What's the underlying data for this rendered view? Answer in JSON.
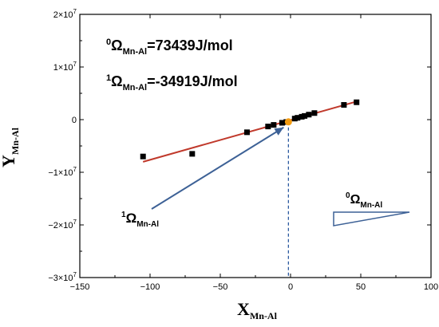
{
  "chart_data": {
    "type": "scatter",
    "x_axis": {
      "label_main": "X",
      "label_sub": "Mn-Al",
      "range": [
        -150,
        100
      ],
      "ticks": [
        -150,
        -100,
        -50,
        0,
        50,
        100
      ],
      "tick_labels": [
        "−150",
        "−100",
        "−50",
        "0",
        "50",
        "100"
      ]
    },
    "y_axis": {
      "label_main": "Y",
      "label_sub": "Mn-Al",
      "range": [
        -30000000,
        20000000
      ],
      "ticks": [
        -30000000,
        -20000000,
        -10000000,
        0,
        10000000,
        20000000
      ],
      "tick_labels": [
        {
          "mant": "−3×10",
          "exp": "7"
        },
        {
          "mant": "−2×10",
          "exp": "7"
        },
        {
          "mant": "−1×10",
          "exp": "7"
        },
        {
          "mant": "0",
          "exp": ""
        },
        {
          "mant": "1×10",
          "exp": "7"
        },
        {
          "mant": "2×10",
          "exp": "7"
        }
      ]
    },
    "points": [
      {
        "x": -105,
        "y": -7000000
      },
      {
        "x": -70,
        "y": -6500000
      },
      {
        "x": -31,
        "y": -2400000
      },
      {
        "x": -16,
        "y": -1300000
      },
      {
        "x": -12,
        "y": -1000000
      },
      {
        "x": -6,
        "y": -600000
      },
      {
        "x": -3,
        "y": -450000
      },
      {
        "x": 3,
        "y": 200000
      },
      {
        "x": 5,
        "y": 350000
      },
      {
        "x": 8,
        "y": 550000
      },
      {
        "x": 10,
        "y": 700000
      },
      {
        "x": 13,
        "y": 950000
      },
      {
        "x": 17,
        "y": 1250000
      },
      {
        "x": 38,
        "y": 2800000
      },
      {
        "x": 47,
        "y": 3300000
      }
    ],
    "fit_line": {
      "x": [
        -105,
        47
      ],
      "y": [
        -8010000,
        3440000
      ],
      "color": "#c0392b"
    },
    "intercept_point": {
      "x": -1.5,
      "y": -420000,
      "color": "#f39c12"
    },
    "dashed_drop_color": "#2c5aa0",
    "arrow_color": "#3d6196",
    "annotations": {
      "omega0": {
        "sym": "Ω",
        "pre_sup": "0",
        "sub": "Mn-Al",
        "value": "=73439J/mol"
      },
      "omega1": {
        "sym": "Ω",
        "pre_sup": "1",
        "sub": "Mn-Al",
        "value": "=-34919J/mol"
      },
      "arrow_label": {
        "sym": "Ω",
        "pre_sup": "1",
        "sub": "Mn-Al"
      },
      "triangle_label": {
        "sym": "Ω",
        "pre_sup": "0",
        "sub": "Mn-Al"
      }
    },
    "grid": false,
    "legend": "none"
  }
}
